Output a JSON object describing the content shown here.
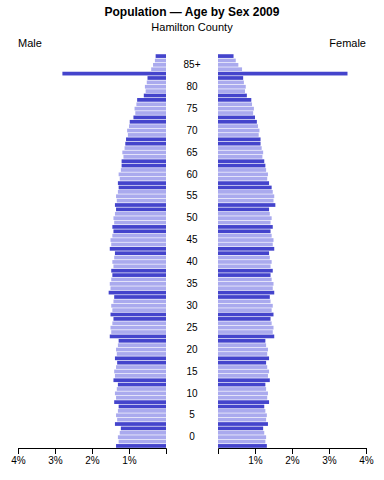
{
  "chart_data": {
    "type": "bar",
    "orientation": "horizontal",
    "title": "Population — Age by Sex 2009",
    "subtitle": "Hamilton County",
    "categories": [
      null,
      null,
      "0",
      null,
      null,
      null,
      null,
      "5",
      null,
      null,
      null,
      null,
      "10",
      null,
      null,
      null,
      null,
      "15",
      null,
      null,
      null,
      null,
      "20",
      null,
      null,
      null,
      null,
      "25",
      null,
      null,
      null,
      null,
      "30",
      null,
      null,
      null,
      null,
      "35",
      null,
      null,
      null,
      null,
      "40",
      null,
      null,
      null,
      null,
      "45",
      null,
      null,
      null,
      null,
      "50",
      null,
      null,
      null,
      null,
      "55",
      null,
      null,
      null,
      null,
      "60",
      null,
      null,
      null,
      null,
      "65",
      null,
      null,
      null,
      null,
      "70",
      null,
      null,
      null,
      null,
      "75",
      null,
      null,
      null,
      null,
      "80",
      null,
      null,
      null,
      null,
      "85+",
      null,
      null
    ],
    "series": [
      {
        "name": "Male",
        "colors": [
          "#4444cc",
          "#aaaaee",
          "#aaaaee",
          "#aaaaee",
          "#4444cc",
          "#4444cc",
          "#aaaaee",
          "#aaaaee",
          "#aaaaee",
          "#4444cc",
          "#4444cc",
          "#aaaaee",
          "#aaaaee",
          "#aaaaee",
          "#4444cc",
          "#4444cc",
          "#aaaaee",
          "#aaaaee",
          "#aaaaee",
          "#4444cc",
          "#4444cc",
          "#aaaaee",
          "#aaaaee",
          "#aaaaee",
          "#4444cc",
          "#4444cc",
          "#aaaaee",
          "#aaaaee",
          "#aaaaee",
          "#4444cc",
          "#4444cc",
          "#aaaaee",
          "#aaaaee",
          "#aaaaee",
          "#4444cc",
          "#4444cc",
          "#aaaaee",
          "#aaaaee",
          "#aaaaee",
          "#4444cc",
          "#4444cc",
          "#aaaaee",
          "#aaaaee",
          "#aaaaee",
          "#4444cc",
          "#4444cc",
          "#aaaaee",
          "#aaaaee",
          "#aaaaee",
          "#4444cc",
          "#4444cc",
          "#aaaaee",
          "#aaaaee",
          "#aaaaee",
          "#4444cc",
          "#4444cc",
          "#aaaaee",
          "#aaaaee",
          "#aaaaee",
          "#4444cc",
          "#4444cc",
          "#aaaaee",
          "#aaaaee",
          "#aaaaee",
          "#4444cc",
          "#4444cc",
          "#aaaaee",
          "#aaaaee",
          "#aaaaee",
          "#4444cc",
          "#4444cc",
          "#aaaaee",
          "#aaaaee",
          "#aaaaee",
          "#4444cc",
          "#4444cc",
          "#aaaaee",
          "#aaaaee",
          "#aaaaee",
          "#4444cc",
          "#4444cc",
          "#aaaaee",
          "#aaaaee",
          "#aaaaee",
          "#4444cc",
          "#4444cc",
          "#aaaaee",
          "#aaaaee",
          "#aaaaee",
          "#4444cc"
        ],
        "values": [
          1.35,
          1.28,
          1.3,
          1.25,
          1.22,
          1.38,
          1.32,
          1.35,
          1.3,
          1.28,
          1.4,
          1.35,
          1.38,
          1.33,
          1.3,
          1.42,
          1.38,
          1.4,
          1.35,
          1.32,
          1.38,
          1.33,
          1.35,
          1.3,
          1.28,
          1.52,
          1.48,
          1.5,
          1.45,
          1.42,
          1.5,
          1.45,
          1.48,
          1.42,
          1.4,
          1.55,
          1.5,
          1.52,
          1.48,
          1.45,
          1.48,
          1.42,
          1.45,
          1.4,
          1.38,
          1.52,
          1.48,
          1.5,
          1.45,
          1.42,
          1.45,
          1.4,
          1.42,
          1.38,
          1.35,
          1.38,
          1.33,
          1.35,
          1.3,
          1.28,
          1.3,
          1.25,
          1.28,
          1.22,
          1.2,
          1.2,
          1.15,
          1.18,
          1.12,
          1.1,
          1.08,
          1.03,
          1.05,
          1.0,
          0.98,
          0.88,
          0.83,
          0.85,
          0.8,
          0.78,
          0.6,
          0.55,
          0.57,
          0.52,
          0.5,
          2.8,
          0.4,
          0.35,
          0.3,
          0.28
        ]
      },
      {
        "name": "Female",
        "colors": [
          "#4444cc",
          "#aaaaee",
          "#aaaaee",
          "#aaaaee",
          "#4444cc",
          "#4444cc",
          "#aaaaee",
          "#aaaaee",
          "#aaaaee",
          "#4444cc",
          "#4444cc",
          "#aaaaee",
          "#aaaaee",
          "#aaaaee",
          "#4444cc",
          "#4444cc",
          "#aaaaee",
          "#aaaaee",
          "#aaaaee",
          "#4444cc",
          "#4444cc",
          "#aaaaee",
          "#aaaaee",
          "#aaaaee",
          "#4444cc",
          "#4444cc",
          "#aaaaee",
          "#aaaaee",
          "#aaaaee",
          "#4444cc",
          "#4444cc",
          "#aaaaee",
          "#aaaaee",
          "#aaaaee",
          "#4444cc",
          "#4444cc",
          "#aaaaee",
          "#aaaaee",
          "#aaaaee",
          "#4444cc",
          "#4444cc",
          "#aaaaee",
          "#aaaaee",
          "#aaaaee",
          "#4444cc",
          "#4444cc",
          "#aaaaee",
          "#aaaaee",
          "#aaaaee",
          "#4444cc",
          "#4444cc",
          "#aaaaee",
          "#aaaaee",
          "#aaaaee",
          "#4444cc",
          "#4444cc",
          "#aaaaee",
          "#aaaaee",
          "#aaaaee",
          "#4444cc",
          "#4444cc",
          "#aaaaee",
          "#aaaaee",
          "#aaaaee",
          "#4444cc",
          "#4444cc",
          "#aaaaee",
          "#aaaaee",
          "#aaaaee",
          "#4444cc",
          "#4444cc",
          "#aaaaee",
          "#aaaaee",
          "#aaaaee",
          "#4444cc",
          "#4444cc",
          "#aaaaee",
          "#aaaaee",
          "#aaaaee",
          "#4444cc",
          "#4444cc",
          "#aaaaee",
          "#aaaaee",
          "#aaaaee",
          "#4444cc",
          "#4444cc",
          "#aaaaee",
          "#aaaaee",
          "#aaaaee",
          "#4444cc"
        ],
        "values": [
          1.32,
          1.28,
          1.3,
          1.25,
          1.22,
          1.35,
          1.3,
          1.32,
          1.28,
          1.25,
          1.38,
          1.33,
          1.35,
          1.3,
          1.28,
          1.4,
          1.35,
          1.38,
          1.33,
          1.3,
          1.38,
          1.33,
          1.35,
          1.3,
          1.28,
          1.52,
          1.48,
          1.5,
          1.45,
          1.42,
          1.5,
          1.45,
          1.48,
          1.42,
          1.4,
          1.52,
          1.48,
          1.5,
          1.45,
          1.42,
          1.48,
          1.42,
          1.45,
          1.4,
          1.38,
          1.52,
          1.48,
          1.5,
          1.45,
          1.42,
          1.48,
          1.42,
          1.45,
          1.4,
          1.38,
          1.55,
          1.5,
          1.52,
          1.48,
          1.45,
          1.38,
          1.33,
          1.35,
          1.3,
          1.28,
          1.25,
          1.2,
          1.22,
          1.18,
          1.15,
          1.15,
          1.1,
          1.12,
          1.08,
          1.05,
          1.0,
          0.95,
          0.97,
          0.92,
          0.9,
          0.78,
          0.73,
          0.75,
          0.7,
          0.68,
          3.5,
          0.65,
          0.55,
          0.48,
          0.42
        ]
      }
    ],
    "xlim": [
      0,
      4.0
    ],
    "xticks": [
      {
        "value": 1,
        "label": "1%"
      },
      {
        "value": 2,
        "label": "2%"
      },
      {
        "value": 3,
        "label": "3%"
      },
      {
        "value": 4,
        "label": "4%"
      }
    ]
  }
}
